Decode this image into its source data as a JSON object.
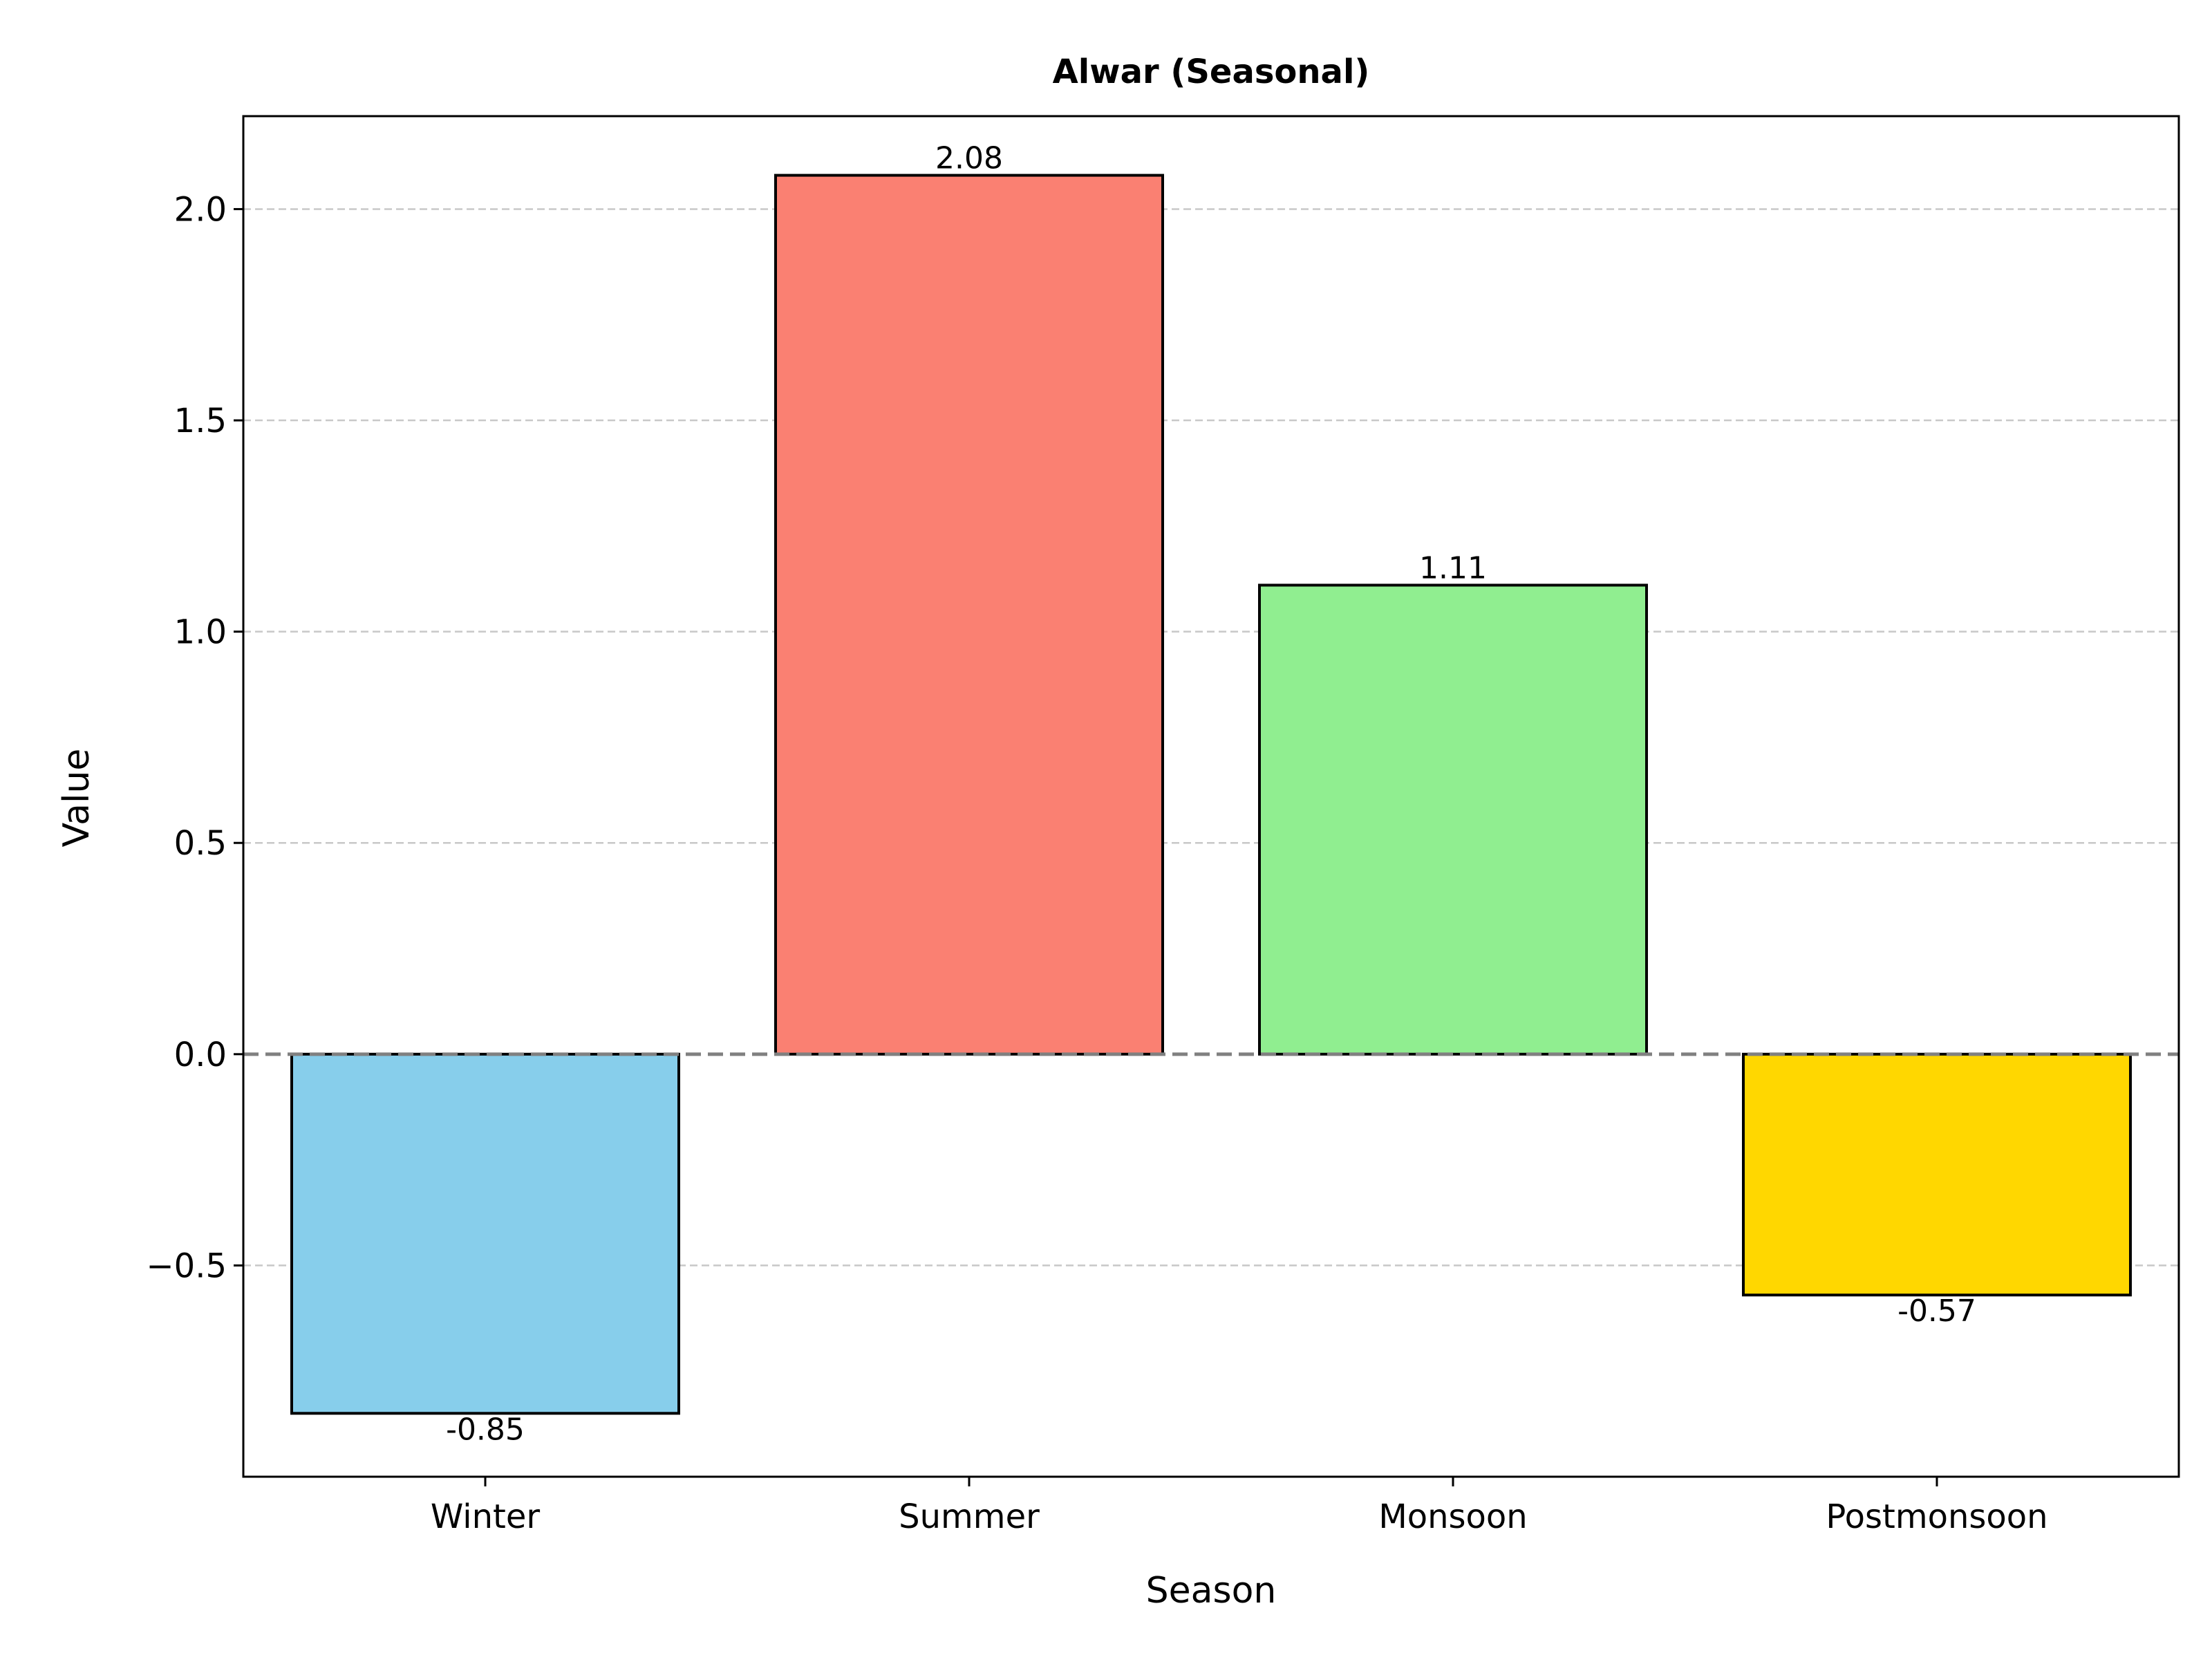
{
  "chart_data": {
    "type": "bar",
    "title": "Alwar (Seasonal)",
    "xlabel": "Season",
    "ylabel": "Value",
    "categories": [
      "Winter",
      "Summer",
      "Monsoon",
      "Postmonsoon"
    ],
    "values": [
      -0.85,
      2.08,
      1.11,
      -0.57
    ],
    "value_labels": [
      "-0.85",
      "2.08",
      "1.11",
      "-0.57"
    ],
    "bar_colors": [
      "#87CEEB",
      "#FA8072",
      "#90EE90",
      "#FFD700"
    ],
    "ylim": [
      -1.0,
      2.22
    ],
    "yticks": [
      -0.5,
      0.0,
      0.5,
      1.0,
      1.5,
      2.0
    ],
    "ytick_labels": [
      "−0.5",
      "0.0",
      "0.5",
      "1.0",
      "1.5",
      "2.0"
    ],
    "grid": "y-dashed",
    "zero_line": true,
    "legend": "none"
  }
}
